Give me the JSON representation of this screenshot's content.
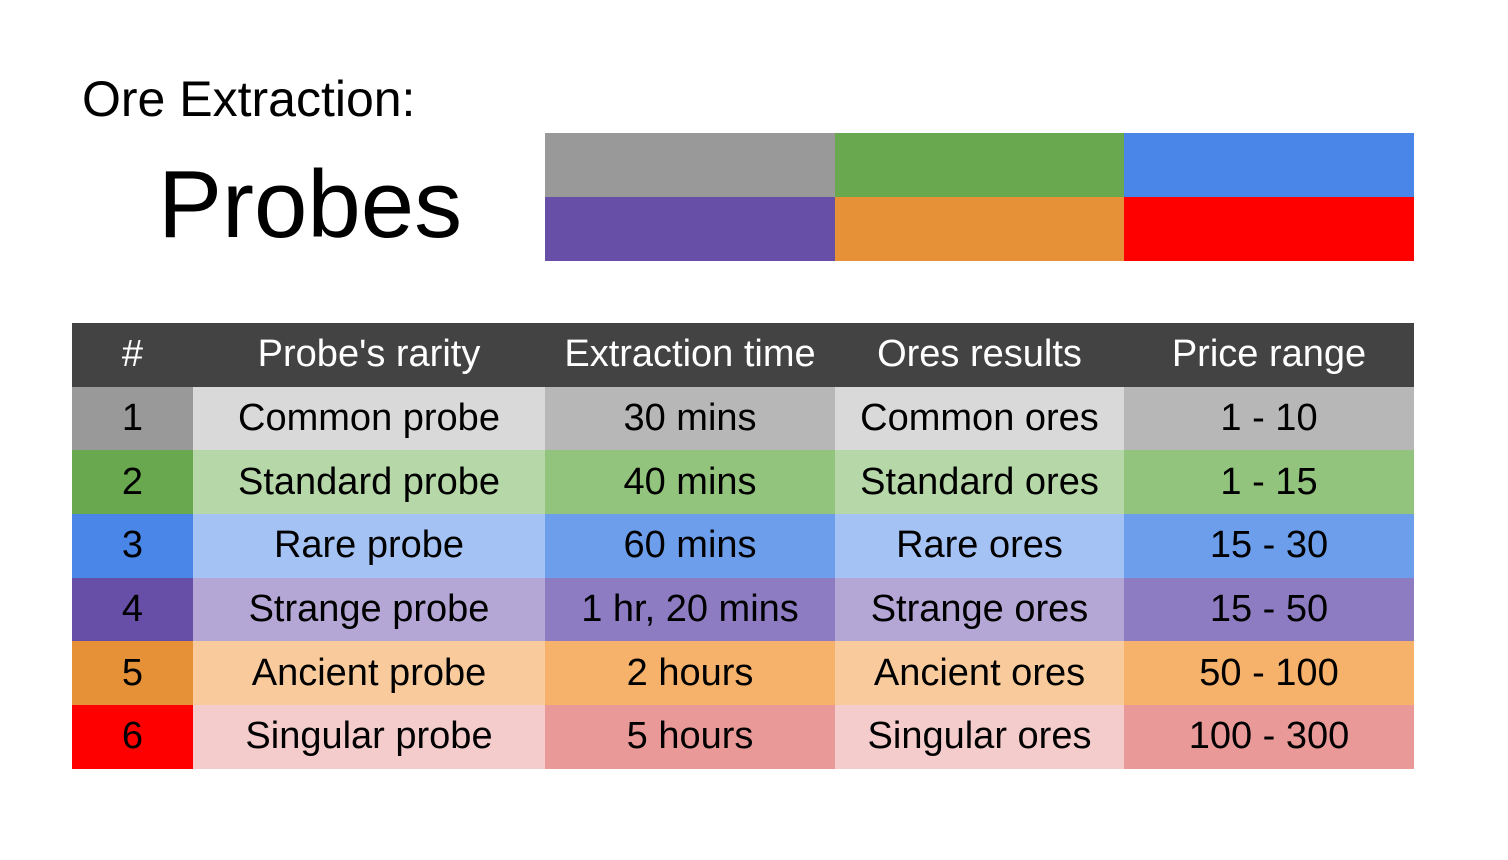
{
  "title": "Ore Extraction:",
  "subtitle": "Probes",
  "swatches": [
    "#999999",
    "#6aa84f",
    "#4a86e8",
    "#674ea7",
    "#e69138",
    "#ff0000"
  ],
  "table": {
    "headers": [
      "#",
      "Probe's rarity",
      "Extraction time",
      "Ores results",
      "Price range"
    ],
    "rows": [
      {
        "num": "1",
        "rarity": "Common probe",
        "time": "30 mins",
        "ores": "Common ores",
        "price": "1 - 10",
        "colors": [
          "#999999",
          "#d9d9d9",
          "#b7b7b7"
        ]
      },
      {
        "num": "2",
        "rarity": "Standard probe",
        "time": "40 mins",
        "ores": "Standard ores",
        "price": "1 - 15",
        "colors": [
          "#6aa84f",
          "#b6d7a8",
          "#93c47d"
        ]
      },
      {
        "num": "3",
        "rarity": "Rare probe",
        "time": "60 mins",
        "ores": "Rare ores",
        "price": "15 - 30",
        "colors": [
          "#4a86e8",
          "#a4c2f4",
          "#6d9eeb"
        ]
      },
      {
        "num": "4",
        "rarity": "Strange probe",
        "time": "1 hr, 20 mins",
        "ores": "Strange ores",
        "price": "15 - 50",
        "colors": [
          "#674ea7",
          "#b4a7d6",
          "#8e7cc3"
        ]
      },
      {
        "num": "5",
        "rarity": "Ancient probe",
        "time": "2 hours",
        "ores": "Ancient ores",
        "price": "50 - 100",
        "colors": [
          "#e69138",
          "#f9cb9c",
          "#f6b26b"
        ]
      },
      {
        "num": "6",
        "rarity": "Singular probe",
        "time": "5 hours",
        "ores": "Singular ores",
        "price": "100 - 300",
        "colors": [
          "#ff0000",
          "#f4cccc",
          "#ea9999"
        ]
      }
    ]
  }
}
